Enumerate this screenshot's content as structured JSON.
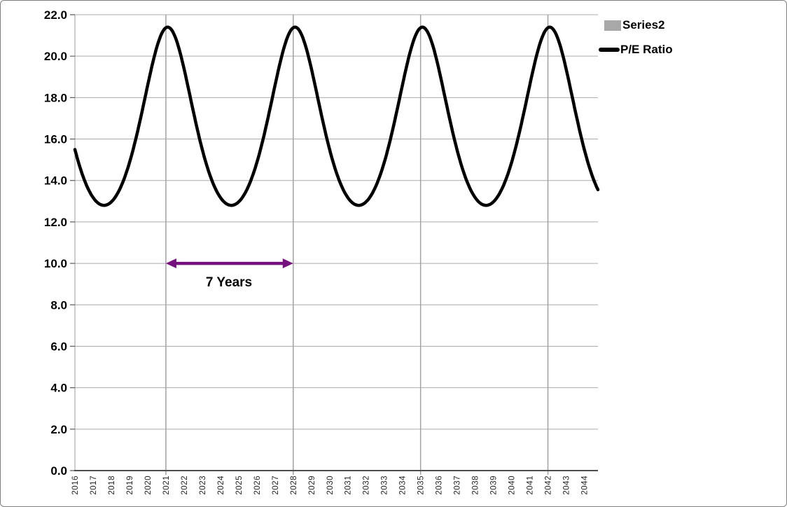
{
  "chart_data": {
    "type": "line",
    "title": "",
    "x_axis": {
      "label": "",
      "categories": [
        "2016",
        "2017",
        "2018",
        "2019",
        "2020",
        "2021",
        "2022",
        "2023",
        "2024",
        "2025",
        "2026",
        "2027",
        "2028",
        "2029",
        "2030",
        "2031",
        "2032",
        "2033",
        "2034",
        "2035",
        "2036",
        "2037",
        "2038",
        "2039",
        "2040",
        "2041",
        "2042",
        "2043",
        "2044"
      ],
      "tick_rotation": -90,
      "gridline_years": [
        2021,
        2028,
        2035,
        2042
      ]
    },
    "y_axis": {
      "label": "",
      "min": 0,
      "max": 22,
      "step": 2,
      "tick_labels": [
        "0.0",
        "2.0",
        "4.0",
        "6.0",
        "8.0",
        "10.0",
        "12.0",
        "14.0",
        "16.0",
        "18.0",
        "20.0",
        "22.0"
      ]
    },
    "grid": {
      "horizontal": true,
      "vertical_every_7_years": true,
      "gridline_color": "#ABABAB",
      "major_vertical_color": "#A1A1A1",
      "axis_color": "#4D4D4D"
    },
    "legend_position": "top-right",
    "series": [
      {
        "name": "Series2",
        "kind": "empty",
        "swatch_color": "#A8A8A8",
        "values": []
      },
      {
        "name": "P/E Ratio",
        "kind": "line",
        "color": "#000000",
        "line_width": 4.5,
        "model": {
          "shape": "reciprocal-cosine",
          "period_years": 7,
          "peak_year": 2021.1,
          "peak_value": 21.4,
          "trough_value": 12.8,
          "t_start": 2016,
          "t_end": 2044.75
        },
        "yearly_values": [
          15.5,
          13.2,
          13.0,
          14.9,
          18.6,
          21.4,
          19.4,
          15.5,
          13.2,
          13.0,
          14.9,
          18.6,
          21.4,
          19.4,
          15.5,
          13.2,
          13.0,
          14.9,
          18.6,
          21.4,
          19.4,
          15.5,
          13.2,
          13.0,
          14.9,
          18.6,
          21.4,
          19.4,
          15.5
        ]
      }
    ],
    "annotation": {
      "text": "7 Years",
      "arrow_from_year": 2021,
      "arrow_to_year": 2028,
      "arrow_at_value": 10.0,
      "arrow_color": "#75107C"
    }
  }
}
